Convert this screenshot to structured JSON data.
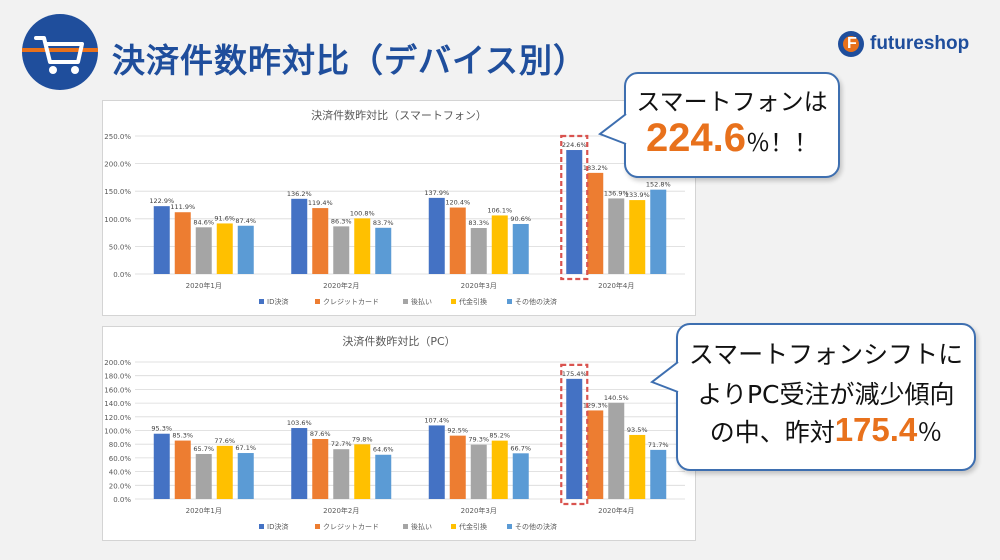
{
  "header": {
    "title": "決済件数昨対比（デバイス別）",
    "logo_text": "futureshop",
    "logo_letter": "F"
  },
  "colors": {
    "brand": "#1f4e9c",
    "accent": "#e8711c",
    "highlight_box": "#d9534f"
  },
  "callouts": {
    "smartphone": {
      "line1": "スマートフォンは",
      "value": "224.6",
      "suffix": "％！！"
    },
    "pc": {
      "line1": "スマートフォンシフトに",
      "line2": "よりPC受注が減少傾向",
      "line3_prefix": "の中、昨対",
      "value": "175.4",
      "suffix": "％"
    }
  },
  "chart_data": [
    {
      "type": "bar",
      "title": "決済件数昨対比（スマートフォン）",
      "categories": [
        "2020年1月",
        "2020年2月",
        "2020年3月",
        "2020年4月"
      ],
      "ylim": [
        0,
        250
      ],
      "yticks": [
        "0.0%",
        "50.0%",
        "100.0%",
        "150.0%",
        "200.0%",
        "250.0%"
      ],
      "grid": true,
      "legend_position": "bottom",
      "highlight_category": "2020年4月",
      "series": [
        {
          "name": "ID決済",
          "color": "#4472c4",
          "values": [
            122.9,
            136.2,
            137.9,
            224.6
          ],
          "labels": [
            "122.9%",
            "136.2%",
            "137.9%",
            "224.6%"
          ]
        },
        {
          "name": "クレジットカード",
          "color": "#ed7d31",
          "values": [
            111.9,
            119.4,
            120.4,
            183.2
          ],
          "labels": [
            "111.9%",
            "119.4%",
            "120.4%",
            "183.2%"
          ]
        },
        {
          "name": "後払い",
          "color": "#a5a5a5",
          "values": [
            84.6,
            86.3,
            83.3,
            136.9
          ],
          "labels": [
            "84.6%",
            "86.3%",
            "83.3%",
            "136.9%"
          ]
        },
        {
          "name": "代金引換",
          "color": "#ffc000",
          "values": [
            91.6,
            100.8,
            106.1,
            133.9
          ],
          "labels": [
            "91.6%",
            "100.8%",
            "106.1%",
            "133.9%"
          ]
        },
        {
          "name": "その他の決済",
          "color": "#5b9bd5",
          "values": [
            87.4,
            83.7,
            90.6,
            152.8
          ],
          "labels": [
            "87.4%",
            "83.7%",
            "90.6%",
            "152.8%"
          ]
        }
      ]
    },
    {
      "type": "bar",
      "title": "決済件数昨対比（PC）",
      "categories": [
        "2020年1月",
        "2020年2月",
        "2020年3月",
        "2020年4月"
      ],
      "ylim": [
        0,
        200
      ],
      "yticks": [
        "0.0%",
        "20.0%",
        "40.0%",
        "60.0%",
        "80.0%",
        "100.0%",
        "120.0%",
        "140.0%",
        "160.0%",
        "180.0%",
        "200.0%"
      ],
      "grid": true,
      "legend_position": "bottom",
      "highlight_category": "2020年4月",
      "series": [
        {
          "name": "ID決済",
          "color": "#4472c4",
          "values": [
            95.3,
            103.6,
            107.4,
            175.4
          ],
          "labels": [
            "95.3%",
            "103.6%",
            "107.4%",
            "175.4%"
          ]
        },
        {
          "name": "クレジットカード",
          "color": "#ed7d31",
          "values": [
            85.3,
            87.6,
            92.5,
            129.3
          ],
          "labels": [
            "85.3%",
            "87.6%",
            "92.5%",
            "129.3%"
          ]
        },
        {
          "name": "後払い",
          "color": "#a5a5a5",
          "values": [
            65.7,
            72.7,
            79.3,
            140.5
          ],
          "labels": [
            "65.7%",
            "72.7%",
            "79.3%",
            "140.5%"
          ]
        },
        {
          "name": "代金引換",
          "color": "#ffc000",
          "values": [
            77.6,
            79.8,
            85.2,
            93.5
          ],
          "labels": [
            "77.6%",
            "79.8%",
            "85.2%",
            "93.5%"
          ]
        },
        {
          "name": "その他の決済",
          "color": "#5b9bd5",
          "values": [
            67.1,
            64.6,
            66.7,
            71.7
          ],
          "labels": [
            "67.1%",
            "64.6%",
            "66.7%",
            "71.7%"
          ]
        }
      ]
    }
  ]
}
